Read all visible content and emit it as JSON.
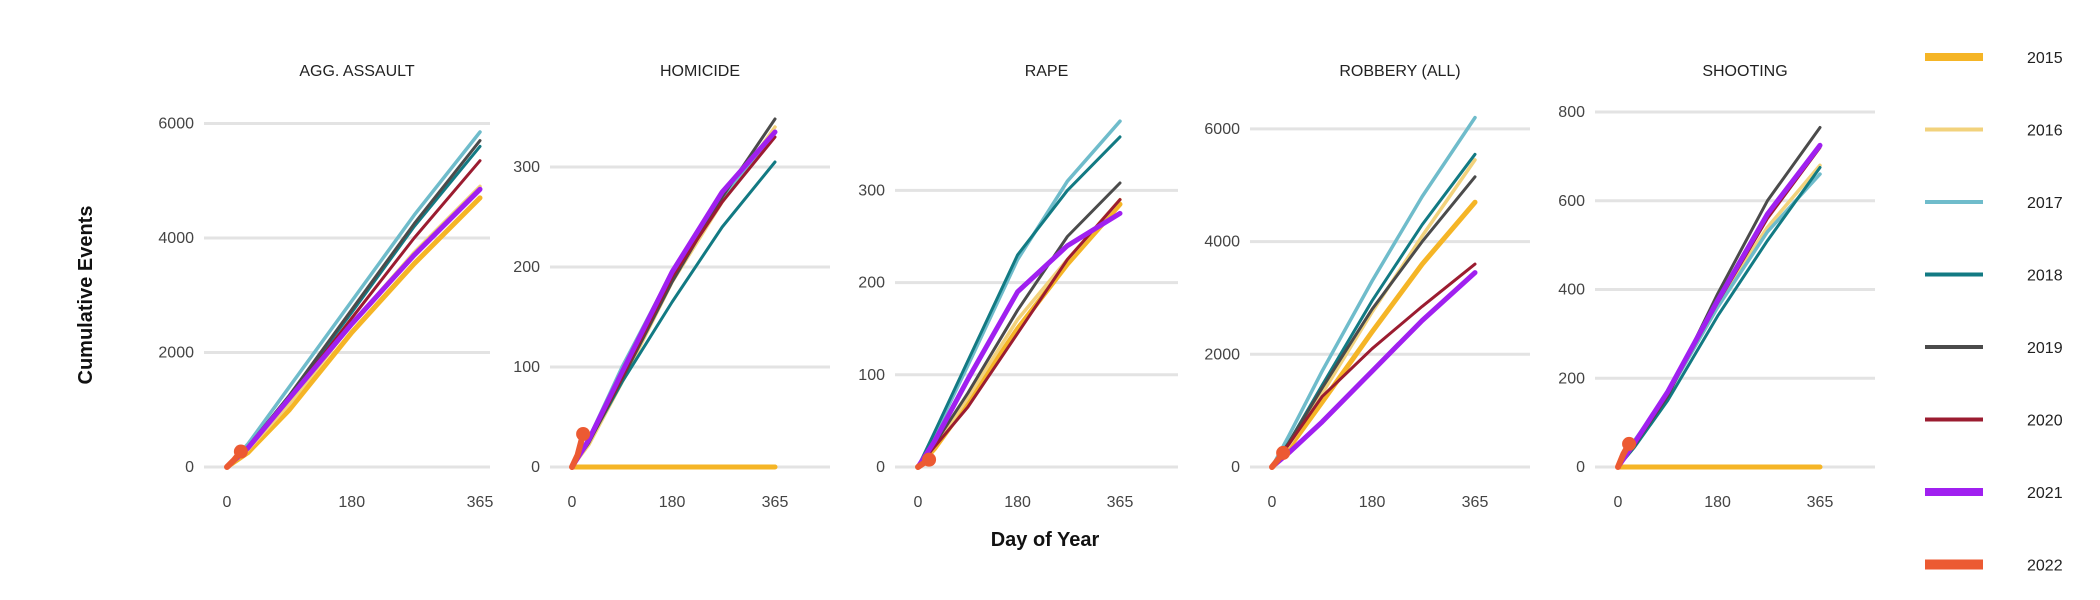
{
  "chart_data": {
    "type": "line",
    "xlabel": "Day of Year",
    "ylabel": "Cumulative Events",
    "x_ticks": [
      0,
      180,
      365
    ],
    "legend_position": "right",
    "grid": "horizontal",
    "series_colors": {
      "2015": "#f5b526",
      "2016": "#f2d27c",
      "2017": "#6fbccb",
      "2018": "#127a83",
      "2019": "#4b4b4b",
      "2020": "#9b1c30",
      "2021": "#a020f0",
      "2022": "#ec5a32"
    },
    "legend": [
      "2015",
      "2016",
      "2017",
      "2018",
      "2019",
      "2020",
      "2021",
      "2022"
    ],
    "panels": [
      {
        "title": "AGG. ASSAULT",
        "ylim": [
          0,
          6200
        ],
        "y_ticks": [
          0,
          2000,
          4000,
          6000
        ],
        "series": [
          {
            "name": "2015",
            "x": [
              0,
              30,
              90,
              180,
              270,
              365
            ],
            "y": [
              0,
              250,
              1000,
              2350,
              3550,
              4700
            ]
          },
          {
            "name": "2016",
            "x": [
              0,
              30,
              90,
              180,
              270,
              365
            ],
            "y": [
              0,
              300,
              1100,
              2500,
              3750,
              4900
            ]
          },
          {
            "name": "2017",
            "x": [
              0,
              30,
              90,
              180,
              270,
              365
            ],
            "y": [
              0,
              400,
              1400,
              2900,
              4400,
              5850
            ]
          },
          {
            "name": "2018",
            "x": [
              0,
              30,
              90,
              180,
              270,
              365
            ],
            "y": [
              0,
              350,
              1250,
              2700,
              4200,
              5600
            ]
          },
          {
            "name": "2019",
            "x": [
              0,
              30,
              90,
              180,
              270,
              365
            ],
            "y": [
              0,
              350,
              1250,
              2750,
              4250,
              5700
            ]
          },
          {
            "name": "2020",
            "x": [
              0,
              30,
              90,
              180,
              270,
              365
            ],
            "y": [
              0,
              330,
              1200,
              2600,
              4000,
              5350
            ]
          },
          {
            "name": "2021",
            "x": [
              0,
              30,
              90,
              180,
              270,
              365
            ],
            "y": [
              0,
              330,
              1200,
              2500,
              3700,
              4850
            ]
          },
          {
            "name": "2022",
            "x": [
              0,
              10,
              20
            ],
            "y": [
              0,
              120,
              270
            ]
          }
        ]
      },
      {
        "title": "HOMICIDE",
        "ylim": [
          0,
          355
        ],
        "y_ticks": [
          0,
          100,
          200,
          300
        ],
        "series": [
          {
            "name": "2015",
            "x": [
              0,
              365
            ],
            "y": [
              0,
              0
            ]
          },
          {
            "name": "2016",
            "x": [
              0,
              30,
              90,
              180,
              270,
              365
            ],
            "y": [
              0,
              22,
              85,
              185,
              265,
              340
            ]
          },
          {
            "name": "2017",
            "x": [
              0,
              30,
              90,
              180,
              270,
              365
            ],
            "y": [
              0,
              28,
              100,
              195,
              270,
              335
            ]
          },
          {
            "name": "2018",
            "x": [
              0,
              30,
              90,
              180,
              270,
              365
            ],
            "y": [
              0,
              25,
              85,
              165,
              240,
              305
            ]
          },
          {
            "name": "2019",
            "x": [
              0,
              30,
              90,
              180,
              270,
              365
            ],
            "y": [
              0,
              24,
              88,
              185,
              270,
              348
            ]
          },
          {
            "name": "2020",
            "x": [
              0,
              30,
              90,
              180,
              270,
              365
            ],
            "y": [
              0,
              25,
              90,
              190,
              265,
              330
            ]
          },
          {
            "name": "2021",
            "x": [
              0,
              30,
              90,
              180,
              270,
              365
            ],
            "y": [
              0,
              27,
              95,
              195,
              275,
              335
            ]
          },
          {
            "name": "2022",
            "x": [
              0,
              10,
              20
            ],
            "y": [
              0,
              12,
              33
            ]
          }
        ]
      },
      {
        "title": "RAPE",
        "ylim": [
          0,
          385
        ],
        "y_ticks": [
          0,
          100,
          200,
          300
        ],
        "series": [
          {
            "name": "2015",
            "x": [
              0,
              30,
              90,
              180,
              270,
              365
            ],
            "y": [
              0,
              20,
              70,
              150,
              220,
              285
            ]
          },
          {
            "name": "2016",
            "x": [
              0,
              30,
              90,
              180,
              270,
              365
            ],
            "y": [
              0,
              22,
              75,
              160,
              225,
              290
            ]
          },
          {
            "name": "2017",
            "x": [
              0,
              30,
              90,
              180,
              270,
              365
            ],
            "y": [
              0,
              35,
              110,
              225,
              310,
              375
            ]
          },
          {
            "name": "2018",
            "x": [
              0,
              30,
              90,
              180,
              270,
              365
            ],
            "y": [
              0,
              38,
              115,
              230,
              300,
              358
            ]
          },
          {
            "name": "2019",
            "x": [
              0,
              30,
              90,
              180,
              270,
              365
            ],
            "y": [
              0,
              25,
              80,
              170,
              250,
              308
            ]
          },
          {
            "name": "2020",
            "x": [
              0,
              30,
              90,
              180,
              270,
              365
            ],
            "y": [
              0,
              22,
              65,
              145,
              225,
              290
            ]
          },
          {
            "name": "2021",
            "x": [
              0,
              30,
              90,
              180,
              270,
              365
            ],
            "y": [
              0,
              28,
              95,
              190,
              240,
              275
            ]
          },
          {
            "name": "2022",
            "x": [
              0,
              10,
              20
            ],
            "y": [
              0,
              4,
              8
            ]
          }
        ]
      },
      {
        "title": "ROBBERY (ALL)",
        "ylim": [
          0,
          6300
        ],
        "y_ticks": [
          0,
          2000,
          4000,
          6000
        ],
        "series": [
          {
            "name": "2015",
            "x": [
              0,
              30,
              90,
              180,
              270,
              365
            ],
            "y": [
              0,
              330,
              1150,
              2400,
              3600,
              4700
            ]
          },
          {
            "name": "2016",
            "x": [
              0,
              30,
              90,
              180,
              270,
              365
            ],
            "y": [
              0,
              380,
              1300,
              2750,
              4100,
              5450
            ]
          },
          {
            "name": "2017",
            "x": [
              0,
              30,
              90,
              180,
              270,
              365
            ],
            "y": [
              0,
              550,
              1700,
              3300,
              4800,
              6200
            ]
          },
          {
            "name": "2018",
            "x": [
              0,
              30,
              90,
              180,
              270,
              365
            ],
            "y": [
              0,
              430,
              1450,
              2950,
              4300,
              5550
            ]
          },
          {
            "name": "2019",
            "x": [
              0,
              30,
              90,
              180,
              270,
              365
            ],
            "y": [
              0,
              430,
              1400,
              2800,
              4000,
              5150
            ]
          },
          {
            "name": "2020",
            "x": [
              0,
              30,
              90,
              180,
              270,
              365
            ],
            "y": [
              0,
              400,
              1250,
              2100,
              2850,
              3600
            ]
          },
          {
            "name": "2021",
            "x": [
              0,
              30,
              90,
              180,
              270,
              365
            ],
            "y": [
              0,
              250,
              800,
              1700,
              2600,
              3450
            ]
          },
          {
            "name": "2022",
            "x": [
              0,
              10,
              20
            ],
            "y": [
              0,
              120,
              250
            ]
          }
        ]
      },
      {
        "title": "SHOOTING",
        "ylim": [
          0,
          800
        ],
        "y_ticks": [
          0,
          200,
          400,
          600,
          800
        ],
        "series": [
          {
            "name": "2015",
            "x": [
              0,
              365
            ],
            "y": [
              0,
              0
            ]
          },
          {
            "name": "2016",
            "x": [
              0,
              30,
              90,
              180,
              270,
              365
            ],
            "y": [
              0,
              55,
              170,
              370,
              540,
              680
            ]
          },
          {
            "name": "2017",
            "x": [
              0,
              30,
              90,
              180,
              270,
              365
            ],
            "y": [
              0,
              60,
              165,
              360,
              530,
              660
            ]
          },
          {
            "name": "2018",
            "x": [
              0,
              30,
              90,
              180,
              270,
              365
            ],
            "y": [
              0,
              45,
              150,
              340,
              510,
              675
            ]
          },
          {
            "name": "2019",
            "x": [
              0,
              30,
              90,
              180,
              270,
              365
            ],
            "y": [
              0,
              50,
              160,
              390,
              600,
              765
            ]
          },
          {
            "name": "2020",
            "x": [
              0,
              30,
              90,
              180,
              270,
              365
            ],
            "y": [
              0,
              50,
              165,
              370,
              560,
              720
            ]
          },
          {
            "name": "2021",
            "x": [
              0,
              30,
              90,
              180,
              270,
              365
            ],
            "y": [
              0,
              55,
              170,
              375,
              570,
              725
            ]
          },
          {
            "name": "2022",
            "x": [
              0,
              10,
              20
            ],
            "y": [
              0,
              30,
              52
            ]
          }
        ]
      }
    ]
  }
}
